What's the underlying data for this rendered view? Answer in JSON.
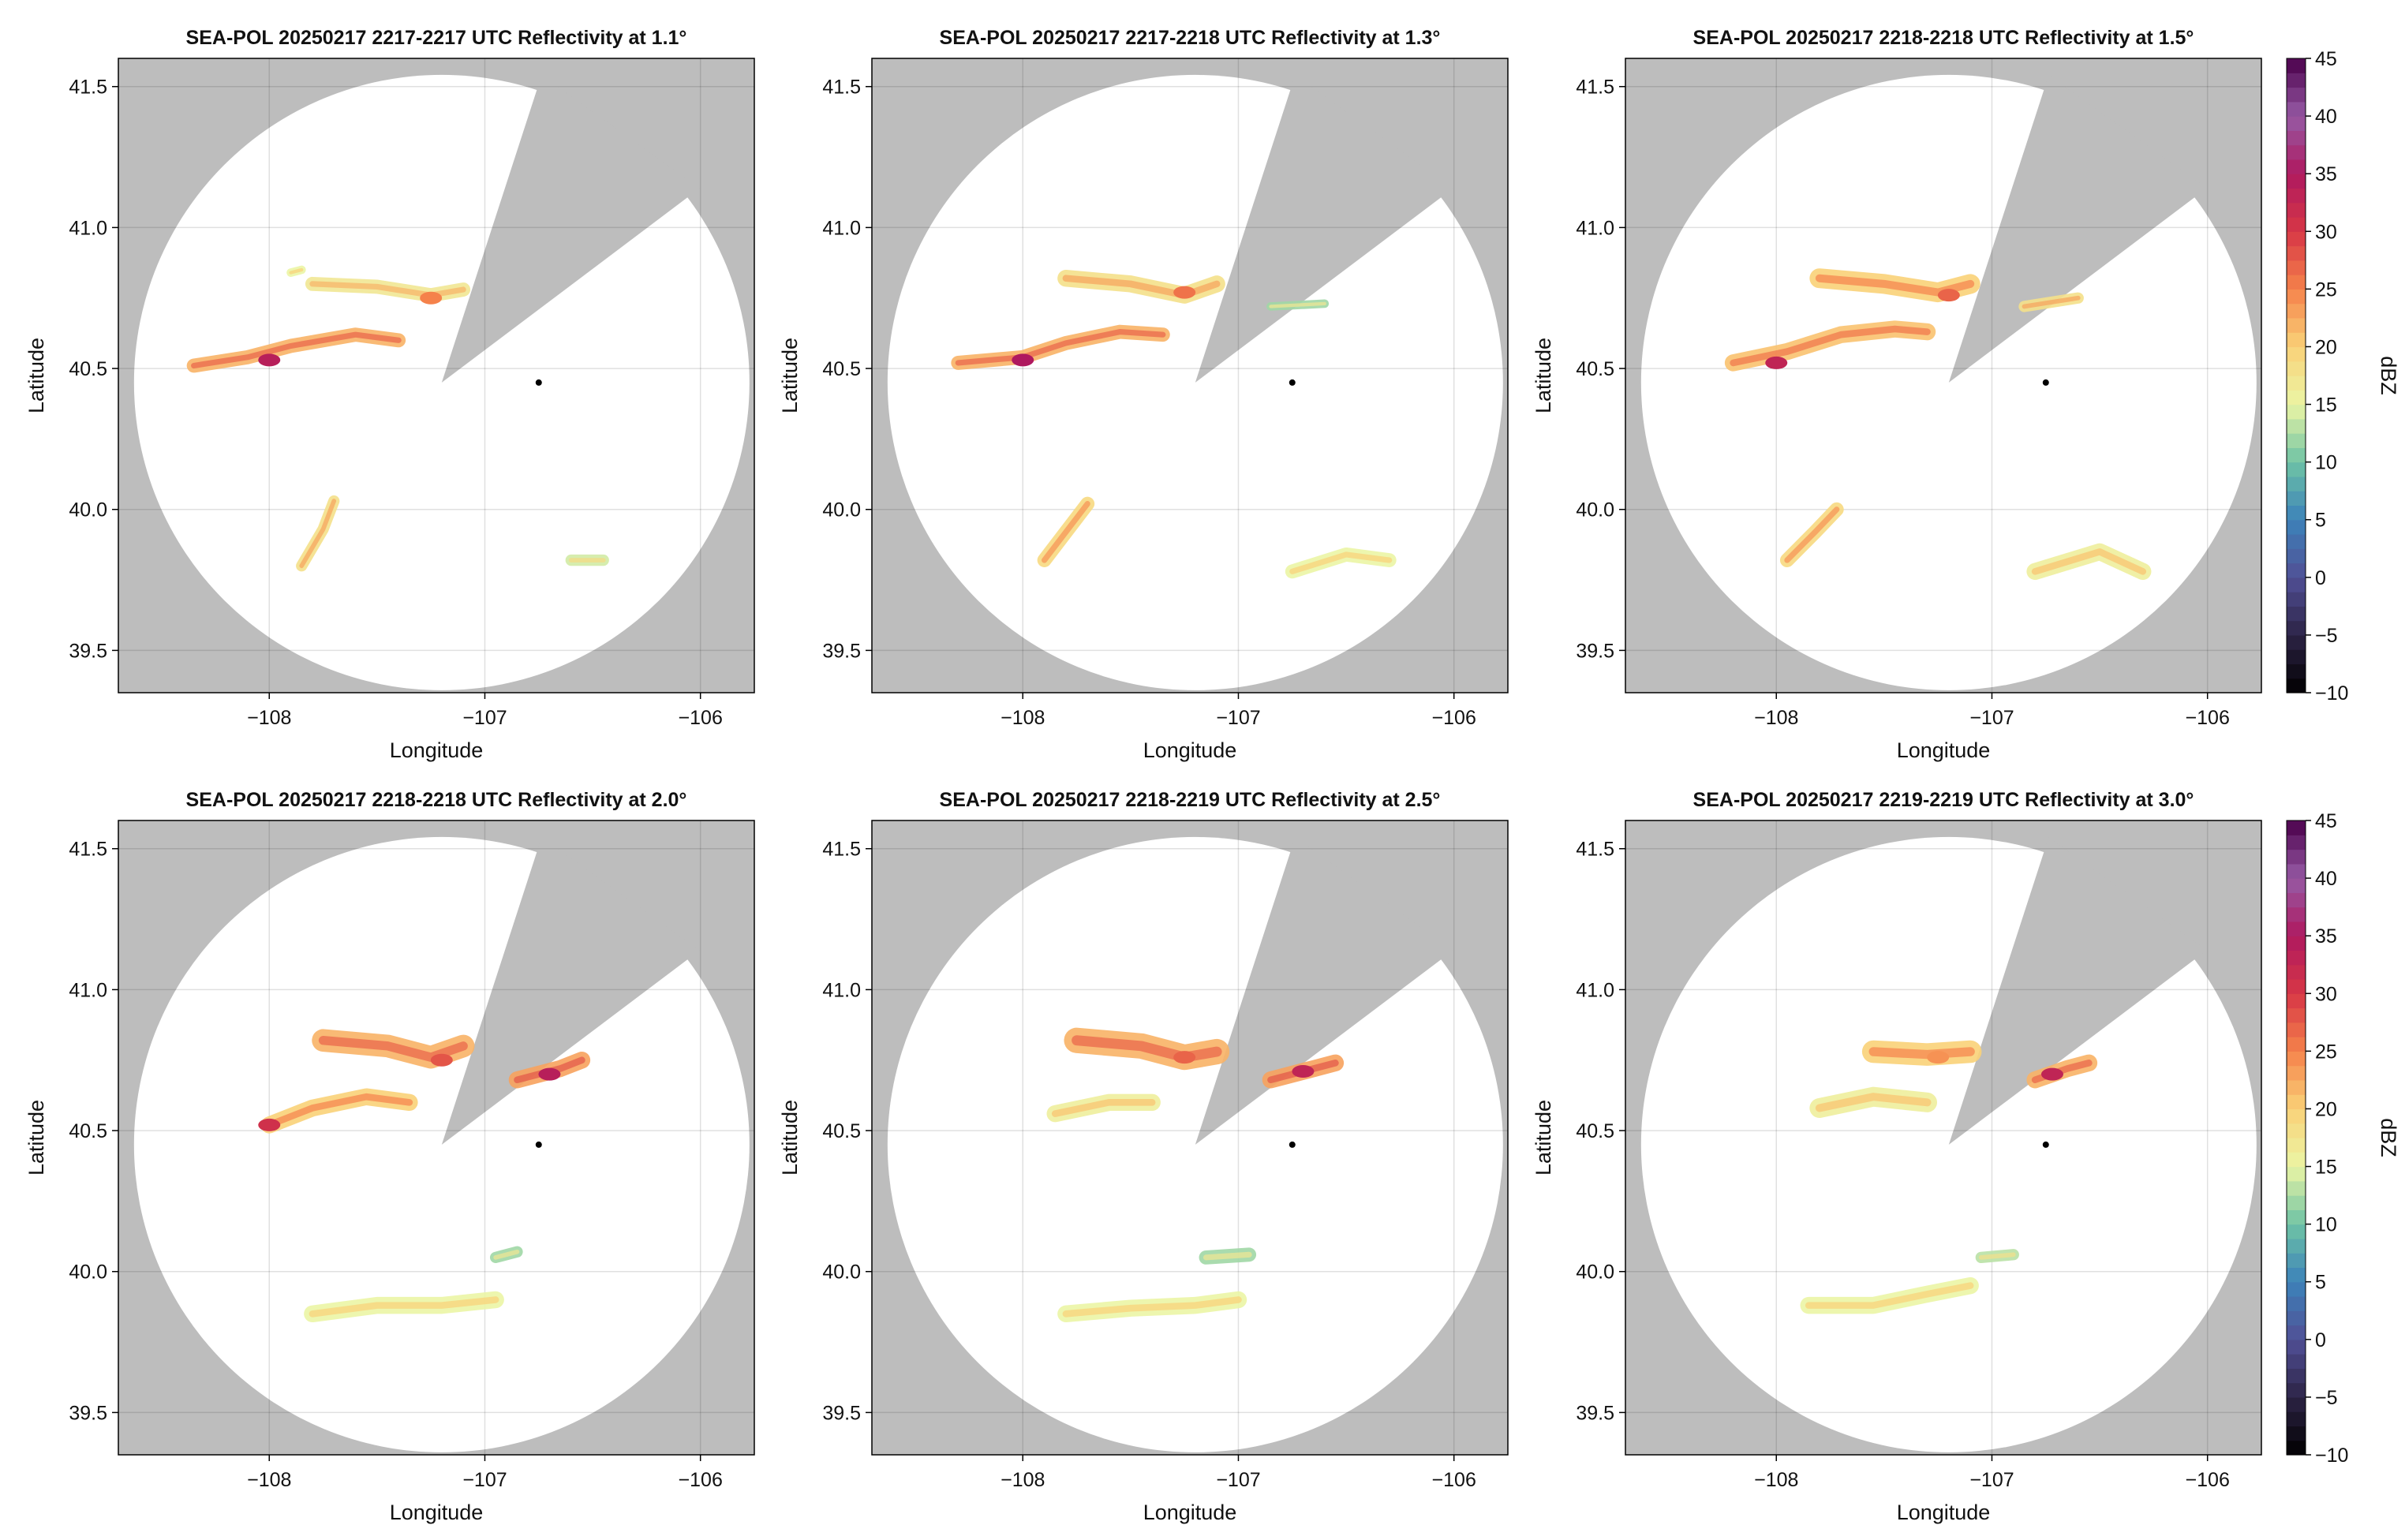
{
  "figure": {
    "radar_site": {
      "lon": -106.75,
      "lat": 40.45
    },
    "colormap_name": "Spectral (reversed)",
    "background_color": "#bdbdbd",
    "coverage_color": "#ffffff",
    "marker_color": "#000000"
  },
  "chart_data": [
    {
      "type": "heatmap",
      "title": "SEA-POL 20250217 2217-2217 UTC Reflectivity at 1.1°",
      "xlabel": "Longitude",
      "ylabel": "Latitude",
      "xticks": [
        "−108",
        "−107",
        "−106"
      ],
      "xtick_values": [
        -108,
        -107,
        -106
      ],
      "yticks": [
        "39.5",
        "40.0",
        "40.5",
        "41.0",
        "41.5"
      ],
      "ytick_values": [
        39.5,
        40.0,
        40.5,
        41.0,
        41.5
      ],
      "xlim": [
        -108.7,
        -105.75
      ],
      "ylim": [
        39.35,
        41.6
      ],
      "grid": true,
      "echoes": [
        {
          "points": [
            [
              -108.35,
              40.51
            ],
            [
              -108.1,
              40.54
            ],
            [
              -107.9,
              40.58
            ],
            [
              -107.6,
              40.62
            ],
            [
              -107.4,
              40.6
            ]
          ],
          "width": 0.05,
          "dbz": 22,
          "peak": [
            -108.0,
            40.53,
            34
          ]
        },
        {
          "points": [
            [
              -107.8,
              40.8
            ],
            [
              -107.5,
              40.79
            ],
            [
              -107.25,
              40.76
            ],
            [
              -107.1,
              40.78
            ]
          ],
          "width": 0.05,
          "dbz": 17,
          "peak": [
            -107.25,
            40.75,
            25
          ]
        },
        {
          "points": [
            [
              -107.85,
              39.8
            ],
            [
              -107.75,
              39.93
            ],
            [
              -107.7,
              40.03
            ]
          ],
          "width": 0.04,
          "dbz": 18
        },
        {
          "points": [
            [
              -106.6,
              39.82
            ],
            [
              -106.45,
              39.82
            ]
          ],
          "width": 0.04,
          "dbz": 14
        },
        {
          "points": [
            [
              -107.9,
              40.84
            ],
            [
              -107.85,
              40.85
            ]
          ],
          "width": 0.03,
          "dbz": 15
        }
      ]
    },
    {
      "type": "heatmap",
      "title": "SEA-POL 20250217 2217-2218 UTC Reflectivity at 1.3°",
      "xlabel": "Longitude",
      "ylabel": "Latitude",
      "xticks": [
        "−108",
        "−107",
        "−106"
      ],
      "xtick_values": [
        -108,
        -107,
        -106
      ],
      "yticks": [
        "39.5",
        "40.0",
        "40.5",
        "41.0",
        "41.5"
      ],
      "ytick_values": [
        39.5,
        40.0,
        40.5,
        41.0,
        41.5
      ],
      "xlim": [
        -108.7,
        -105.75
      ],
      "ylim": [
        39.35,
        41.6
      ],
      "grid": true,
      "echoes": [
        {
          "points": [
            [
              -108.3,
              40.52
            ],
            [
              -108.0,
              40.54
            ],
            [
              -107.8,
              40.59
            ],
            [
              -107.55,
              40.63
            ],
            [
              -107.35,
              40.62
            ]
          ],
          "width": 0.05,
          "dbz": 22,
          "peak": [
            -108.0,
            40.53,
            35
          ]
        },
        {
          "points": [
            [
              -107.8,
              40.82
            ],
            [
              -107.5,
              40.8
            ],
            [
              -107.25,
              40.76
            ],
            [
              -107.1,
              40.8
            ]
          ],
          "width": 0.06,
          "dbz": 18,
          "peak": [
            -107.25,
            40.77,
            26
          ]
        },
        {
          "points": [
            [
              -107.9,
              39.82
            ],
            [
              -107.8,
              39.92
            ],
            [
              -107.7,
              40.02
            ]
          ],
          "width": 0.05,
          "dbz": 19
        },
        {
          "points": [
            [
              -106.85,
              40.72
            ],
            [
              -106.6,
              40.73
            ]
          ],
          "width": 0.03,
          "dbz": 12
        },
        {
          "points": [
            [
              -106.75,
              39.78
            ],
            [
              -106.5,
              39.84
            ],
            [
              -106.3,
              39.82
            ]
          ],
          "width": 0.05,
          "dbz": 15
        }
      ]
    },
    {
      "type": "heatmap",
      "title": "SEA-POL 20250217 2218-2218 UTC Reflectivity at 1.5°",
      "xlabel": "Longitude",
      "ylabel": "Latitude",
      "xticks": [
        "−108",
        "−107",
        "−106"
      ],
      "xtick_values": [
        -108,
        -107,
        -106
      ],
      "yticks": [
        "39.5",
        "40.0",
        "40.5",
        "41.0",
        "41.5"
      ],
      "ytick_values": [
        39.5,
        40.0,
        40.5,
        41.0,
        41.5
      ],
      "xlim": [
        -108.7,
        -105.75
      ],
      "ylim": [
        39.35,
        41.6
      ],
      "grid": true,
      "echoes": [
        {
          "points": [
            [
              -108.2,
              40.52
            ],
            [
              -107.95,
              40.56
            ],
            [
              -107.7,
              40.62
            ],
            [
              -107.45,
              40.64
            ],
            [
              -107.3,
              40.63
            ]
          ],
          "width": 0.06,
          "dbz": 21,
          "peak": [
            -108.0,
            40.52,
            33
          ]
        },
        {
          "points": [
            [
              -107.8,
              40.82
            ],
            [
              -107.5,
              40.8
            ],
            [
              -107.25,
              40.77
            ],
            [
              -107.1,
              40.8
            ]
          ],
          "width": 0.07,
          "dbz": 20,
          "peak": [
            -107.2,
            40.76,
            27
          ]
        },
        {
          "points": [
            [
              -107.95,
              39.82
            ],
            [
              -107.82,
              39.92
            ],
            [
              -107.72,
              40.0
            ]
          ],
          "width": 0.05,
          "dbz": 19
        },
        {
          "points": [
            [
              -106.85,
              40.72
            ],
            [
              -106.6,
              40.75
            ]
          ],
          "width": 0.04,
          "dbz": 18
        },
        {
          "points": [
            [
              -106.8,
              39.78
            ],
            [
              -106.5,
              39.85
            ],
            [
              -106.3,
              39.78
            ]
          ],
          "width": 0.06,
          "dbz": 16
        }
      ]
    },
    {
      "type": "heatmap",
      "title": "SEA-POL 20250217 2218-2218 UTC Reflectivity at 2.0°",
      "xlabel": "Longitude",
      "ylabel": "Latitude",
      "xticks": [
        "−108",
        "−107",
        "−106"
      ],
      "xtick_values": [
        -108,
        -107,
        -106
      ],
      "yticks": [
        "39.5",
        "40.0",
        "40.5",
        "41.0",
        "41.5"
      ],
      "ytick_values": [
        39.5,
        40.0,
        40.5,
        41.0,
        41.5
      ],
      "xlim": [
        -108.7,
        -105.75
      ],
      "ylim": [
        39.35,
        41.6
      ],
      "grid": true,
      "echoes": [
        {
          "points": [
            [
              -108.0,
              40.52
            ],
            [
              -107.8,
              40.58
            ],
            [
              -107.55,
              40.62
            ],
            [
              -107.35,
              40.6
            ]
          ],
          "width": 0.06,
          "dbz": 20,
          "peak": [
            -108.0,
            40.52,
            31
          ]
        },
        {
          "points": [
            [
              -107.75,
              40.82
            ],
            [
              -107.45,
              40.8
            ],
            [
              -107.25,
              40.76
            ],
            [
              -107.1,
              40.8
            ]
          ],
          "width": 0.08,
          "dbz": 22,
          "peak": [
            -107.2,
            40.75,
            28
          ]
        },
        {
          "points": [
            [
              -106.85,
              40.68
            ],
            [
              -106.65,
              40.72
            ],
            [
              -106.55,
              40.75
            ]
          ],
          "width": 0.06,
          "dbz": 23,
          "peak": [
            -106.7,
            40.7,
            34
          ]
        },
        {
          "points": [
            [
              -107.8,
              39.85
            ],
            [
              -107.5,
              39.88
            ],
            [
              -107.2,
              39.88
            ],
            [
              -106.95,
              39.9
            ]
          ],
          "width": 0.06,
          "dbz": 15
        },
        {
          "points": [
            [
              -106.95,
              40.05
            ],
            [
              -106.85,
              40.07
            ]
          ],
          "width": 0.04,
          "dbz": 12
        }
      ]
    },
    {
      "type": "heatmap",
      "title": "SEA-POL 20250217 2218-2219 UTC Reflectivity at 2.5°",
      "xlabel": "Longitude",
      "ylabel": "Latitude",
      "xticks": [
        "−108",
        "−107",
        "−106"
      ],
      "xtick_values": [
        -108,
        -107,
        -106
      ],
      "yticks": [
        "39.5",
        "40.0",
        "40.5",
        "41.0",
        "41.5"
      ],
      "ytick_values": [
        39.5,
        40.0,
        40.5,
        41.0,
        41.5
      ],
      "xlim": [
        -108.7,
        -105.75
      ],
      "ylim": [
        39.35,
        41.6
      ],
      "grid": true,
      "echoes": [
        {
          "points": [
            [
              -107.85,
              40.56
            ],
            [
              -107.6,
              40.6
            ],
            [
              -107.4,
              40.6
            ]
          ],
          "width": 0.06,
          "dbz": 16
        },
        {
          "points": [
            [
              -107.75,
              40.82
            ],
            [
              -107.45,
              40.8
            ],
            [
              -107.25,
              40.76
            ],
            [
              -107.1,
              40.78
            ]
          ],
          "width": 0.09,
          "dbz": 22,
          "peak": [
            -107.25,
            40.76,
            27
          ]
        },
        {
          "points": [
            [
              -106.85,
              40.68
            ],
            [
              -106.65,
              40.72
            ],
            [
              -106.55,
              40.74
            ]
          ],
          "width": 0.06,
          "dbz": 23,
          "peak": [
            -106.7,
            40.71,
            33
          ]
        },
        {
          "points": [
            [
              -107.8,
              39.85
            ],
            [
              -107.5,
              39.87
            ],
            [
              -107.2,
              39.88
            ],
            [
              -107.0,
              39.9
            ]
          ],
          "width": 0.06,
          "dbz": 15
        },
        {
          "points": [
            [
              -107.15,
              40.05
            ],
            [
              -106.95,
              40.06
            ]
          ],
          "width": 0.05,
          "dbz": 12
        }
      ]
    },
    {
      "type": "heatmap",
      "title": "SEA-POL 20250217 2219-2219 UTC Reflectivity at 3.0°",
      "xlabel": "Longitude",
      "ylabel": "Latitude",
      "xticks": [
        "−108",
        "−107",
        "−106"
      ],
      "xtick_values": [
        -108,
        -107,
        -106
      ],
      "yticks": [
        "39.5",
        "40.0",
        "40.5",
        "41.0",
        "41.5"
      ],
      "ytick_values": [
        39.5,
        40.0,
        40.5,
        41.0,
        41.5
      ],
      "xlim": [
        -108.7,
        -105.75
      ],
      "ylim": [
        39.35,
        41.6
      ],
      "grid": true,
      "echoes": [
        {
          "points": [
            [
              -107.8,
              40.58
            ],
            [
              -107.55,
              40.62
            ],
            [
              -107.3,
              40.6
            ]
          ],
          "width": 0.07,
          "dbz": 16
        },
        {
          "points": [
            [
              -107.55,
              40.78
            ],
            [
              -107.3,
              40.77
            ],
            [
              -107.1,
              40.78
            ]
          ],
          "width": 0.08,
          "dbz": 20,
          "peak": [
            -107.25,
            40.76,
            24
          ]
        },
        {
          "points": [
            [
              -106.8,
              40.68
            ],
            [
              -106.65,
              40.72
            ],
            [
              -106.55,
              40.74
            ]
          ],
          "width": 0.06,
          "dbz": 22,
          "peak": [
            -106.72,
            40.7,
            33
          ]
        },
        {
          "points": [
            [
              -107.85,
              39.88
            ],
            [
              -107.55,
              39.88
            ],
            [
              -107.3,
              39.92
            ],
            [
              -107.1,
              39.95
            ]
          ],
          "width": 0.06,
          "dbz": 15
        },
        {
          "points": [
            [
              -107.05,
              40.05
            ],
            [
              -106.9,
              40.06
            ]
          ],
          "width": 0.04,
          "dbz": 13
        }
      ]
    }
  ],
  "colorbars": [
    {
      "label": "dBZ",
      "range": [
        -10,
        45
      ],
      "ticks": [
        "45",
        "40",
        "35",
        "30",
        "25",
        "20",
        "15",
        "10",
        "5",
        "0",
        "−5",
        "−10"
      ],
      "tick_values": [
        45,
        40,
        35,
        30,
        25,
        20,
        15,
        10,
        5,
        0,
        -5,
        -10
      ]
    },
    {
      "label": "dBZ",
      "range": [
        -10,
        45
      ],
      "ticks": [
        "45",
        "40",
        "35",
        "30",
        "25",
        "20",
        "15",
        "10",
        "5",
        "0",
        "−5",
        "−10"
      ],
      "tick_values": [
        45,
        40,
        35,
        30,
        25,
        20,
        15,
        10,
        5,
        0,
        -5,
        -10
      ]
    }
  ]
}
